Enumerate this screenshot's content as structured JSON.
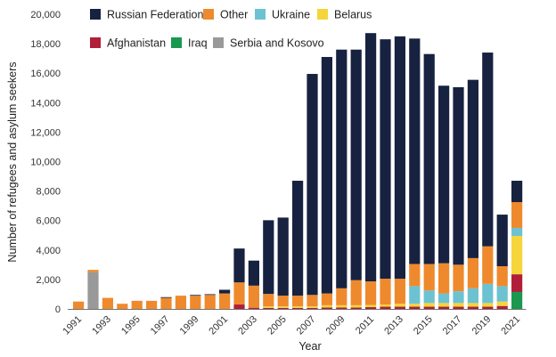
{
  "chart_data": {
    "type": "bar",
    "stacked": true,
    "xlabel": "Year",
    "ylabel": "Number of refugees and asylum seekers",
    "ylim": [
      0,
      20000
    ],
    "yticks": [
      0,
      2000,
      4000,
      6000,
      8000,
      10000,
      12000,
      14000,
      16000,
      18000,
      20000
    ],
    "ytick_labels": [
      "0",
      "2,000",
      "4,000",
      "6,000",
      "8,000",
      "10,000",
      "12,000",
      "14,000",
      "16,000",
      "18,000",
      "20,000"
    ],
    "categories": [
      "1991",
      "1992",
      "1993",
      "1994",
      "1995",
      "1996",
      "1997",
      "1998",
      "1999",
      "2000",
      "2001",
      "2002",
      "2003",
      "2004",
      "2005",
      "2006",
      "2007",
      "2008",
      "2009",
      "2010",
      "2011",
      "2012",
      "2013",
      "2014",
      "2015",
      "2016",
      "2017",
      "2018",
      "2019",
      "2020",
      "2021"
    ],
    "xtick_labels": [
      "1991",
      "1993",
      "1995",
      "1997",
      "1999",
      "2001",
      "2003",
      "2005",
      "2007",
      "2009",
      "2011",
      "2013",
      "2015",
      "2017",
      "2019",
      "2021"
    ],
    "legend_position": "top",
    "series": [
      {
        "name": "Iraq",
        "color": "#1a9850",
        "values": [
          0,
          0,
          0,
          0,
          0,
          0,
          0,
          0,
          0,
          0,
          0,
          0,
          0,
          0,
          0,
          0,
          0,
          0,
          0,
          0,
          0,
          0,
          0,
          0,
          0,
          0,
          0,
          0,
          0,
          0,
          1150
        ]
      },
      {
        "name": "Afghanistan",
        "color": "#b01e3a",
        "values": [
          0,
          0,
          0,
          0,
          0,
          0,
          0,
          0,
          0,
          0,
          0,
          300,
          80,
          70,
          70,
          70,
          70,
          100,
          100,
          100,
          120,
          150,
          150,
          150,
          150,
          150,
          150,
          150,
          150,
          200,
          1200
        ]
      },
      {
        "name": "Serbia and Kosovo",
        "color": "#999999",
        "values": [
          0,
          2500,
          0,
          0,
          0,
          0,
          0,
          0,
          0,
          0,
          0,
          0,
          0,
          0,
          0,
          0,
          0,
          0,
          0,
          0,
          0,
          0,
          0,
          0,
          0,
          0,
          0,
          0,
          0,
          0,
          0
        ]
      },
      {
        "name": "Belarus",
        "color": "#f5d53a",
        "values": [
          0,
          0,
          0,
          0,
          0,
          0,
          0,
          0,
          0,
          0,
          0,
          0,
          0,
          100,
          100,
          100,
          100,
          150,
          150,
          150,
          150,
          150,
          200,
          200,
          250,
          250,
          250,
          250,
          250,
          300,
          2600
        ]
      },
      {
        "name": "Ukraine",
        "color": "#6dc2d1",
        "values": [
          0,
          0,
          0,
          0,
          0,
          0,
          0,
          0,
          0,
          0,
          0,
          0,
          0,
          0,
          0,
          0,
          0,
          0,
          0,
          0,
          0,
          0,
          0,
          1200,
          850,
          650,
          800,
          1000,
          1300,
          1050,
          550
        ]
      },
      {
        "name": "Other",
        "color": "#ee8a2d",
        "values": [
          500,
          150,
          750,
          350,
          550,
          550,
          750,
          900,
          900,
          950,
          1050,
          1500,
          1500,
          850,
          730,
          730,
          780,
          800,
          1150,
          1700,
          1600,
          1750,
          1700,
          1500,
          1800,
          2050,
          1800,
          2050,
          2550,
          1350,
          1750
        ]
      },
      {
        "name": "Russian Federation",
        "color": "#172240",
        "values": [
          0,
          0,
          0,
          0,
          0,
          0,
          50,
          0,
          50,
          50,
          250,
          2300,
          1700,
          5000,
          5300,
          7800,
          15000,
          16050,
          16200,
          15650,
          16850,
          16250,
          16450,
          15300,
          14250,
          12050,
          12050,
          12100,
          13150,
          3500,
          1450
        ]
      }
    ],
    "legend": [
      {
        "name": "Russian Federation",
        "color": "#172240"
      },
      {
        "name": "Other",
        "color": "#ee8a2d"
      },
      {
        "name": "Ukraine",
        "color": "#6dc2d1"
      },
      {
        "name": "Belarus",
        "color": "#f5d53a"
      },
      {
        "name": "Afghanistan",
        "color": "#b01e3a"
      },
      {
        "name": "Iraq",
        "color": "#1a9850"
      },
      {
        "name": "Serbia and Kosovo",
        "color": "#999999"
      }
    ]
  }
}
